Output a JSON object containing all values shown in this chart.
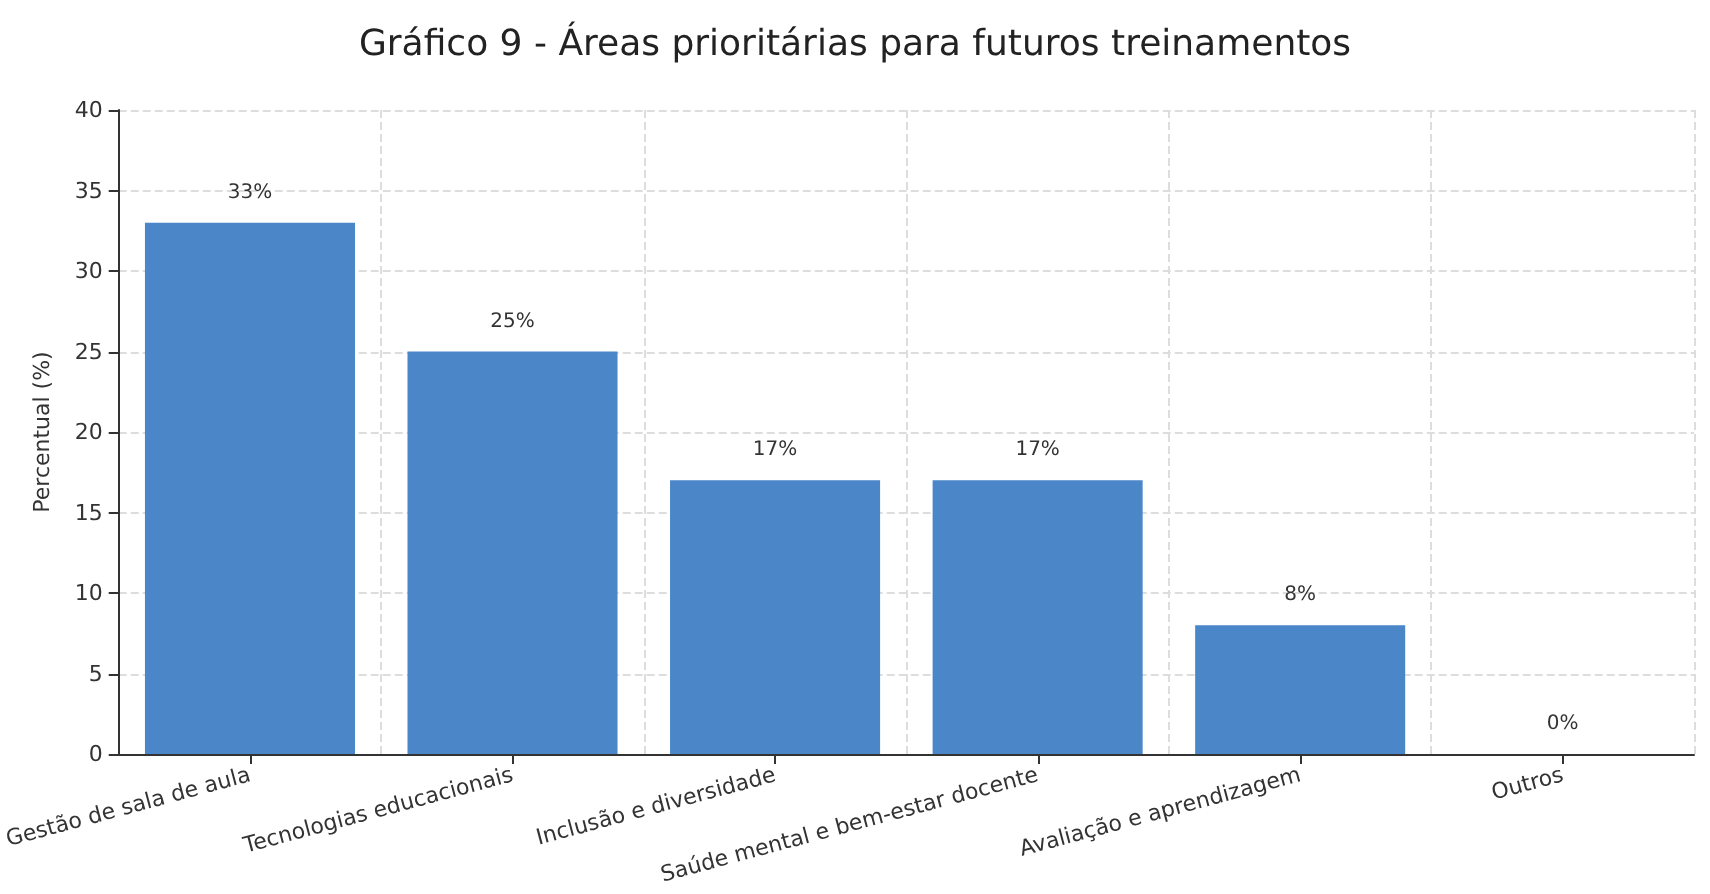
{
  "chart_data": {
    "type": "bar",
    "title": "Gráfico 9 - Áreas prioritárias para futuros treinamentos",
    "ylabel": "Percentual (%)",
    "categories": [
      "Gestão de sala de aula",
      "Tecnologias educacionais",
      "Inclusão e diversidade",
      "Saúde mental e bem-estar docente",
      "Avaliação e aprendizagem",
      "Outros"
    ],
    "values": [
      33,
      25,
      17,
      17,
      8,
      0
    ],
    "color": "#4a86c8",
    "value_labels": [
      "33%",
      "25%",
      "17%",
      "17%",
      "8%",
      "0%"
    ],
    "ylim": [
      0,
      40
    ],
    "yticks": [
      0,
      5,
      10,
      15,
      20,
      25,
      30,
      35,
      40
    ],
    "grid": true
  }
}
